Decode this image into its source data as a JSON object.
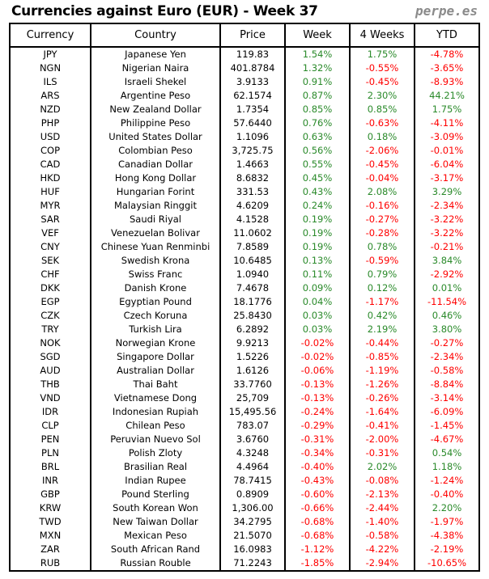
{
  "title": "Currencies against Euro (EUR) - Week 37",
  "brand": "perpe.es",
  "colors": {
    "positive": "#2a8a2a",
    "negative": "#ff0000"
  },
  "chart_data": {
    "type": "table",
    "columns": [
      "Currency",
      "Country",
      "Price",
      "Week",
      "4 Weeks",
      "YTD"
    ],
    "rows": [
      [
        "JPY",
        "Japanese Yen",
        "119.83",
        "1.54%",
        "1.75%",
        "-4.78%"
      ],
      [
        "NGN",
        "Nigerian Naira",
        "401.8784",
        "1.32%",
        "-0.55%",
        "-3.65%"
      ],
      [
        "ILS",
        "Israeli Shekel",
        "3.9133",
        "0.91%",
        "-0.45%",
        "-8.93%"
      ],
      [
        "ARS",
        "Argentine Peso",
        "62.1574",
        "0.87%",
        "2.30%",
        "44.21%"
      ],
      [
        "NZD",
        "New Zealand Dollar",
        "1.7354",
        "0.85%",
        "0.85%",
        "1.75%"
      ],
      [
        "PHP",
        "Philippine Peso",
        "57.6440",
        "0.76%",
        "-0.63%",
        "-4.11%"
      ],
      [
        "USD",
        "United States Dollar",
        "1.1096",
        "0.63%",
        "0.18%",
        "-3.09%"
      ],
      [
        "COP",
        "Colombian Peso",
        "3,725.75",
        "0.56%",
        "-2.06%",
        "-0.01%"
      ],
      [
        "CAD",
        "Canadian Dollar",
        "1.4663",
        "0.55%",
        "-0.45%",
        "-6.04%"
      ],
      [
        "HKD",
        "Hong Kong Dollar",
        "8.6832",
        "0.45%",
        "-0.04%",
        "-3.17%"
      ],
      [
        "HUF",
        "Hungarian Forint",
        "331.53",
        "0.43%",
        "2.08%",
        "3.29%"
      ],
      [
        "MYR",
        "Malaysian Ringgit",
        "4.6209",
        "0.24%",
        "-0.16%",
        "-2.34%"
      ],
      [
        "SAR",
        "Saudi Riyal",
        "4.1528",
        "0.19%",
        "-0.27%",
        "-3.22%"
      ],
      [
        "VEF",
        "Venezuelan Bolivar",
        "11.0602",
        "0.19%",
        "-0.28%",
        "-3.22%"
      ],
      [
        "CNY",
        "Chinese Yuan Renminbi",
        "7.8589",
        "0.19%",
        "0.78%",
        "-0.21%"
      ],
      [
        "SEK",
        "Swedish Krona",
        "10.6485",
        "0.13%",
        "-0.59%",
        "3.84%"
      ],
      [
        "CHF",
        "Swiss Franc",
        "1.0940",
        "0.11%",
        "0.79%",
        "-2.92%"
      ],
      [
        "DKK",
        "Danish Krone",
        "7.4678",
        "0.09%",
        "0.12%",
        "0.01%"
      ],
      [
        "EGP",
        "Egyptian Pound",
        "18.1776",
        "0.04%",
        "-1.17%",
        "-11.54%"
      ],
      [
        "CZK",
        "Czech Koruna",
        "25.8430",
        "0.03%",
        "0.42%",
        "0.46%"
      ],
      [
        "TRY",
        "Turkish Lira",
        "6.2892",
        "0.03%",
        "2.19%",
        "3.80%"
      ],
      [
        "NOK",
        "Norwegian Krone",
        "9.9213",
        "-0.02%",
        "-0.44%",
        "-0.27%"
      ],
      [
        "SGD",
        "Singapore Dollar",
        "1.5226",
        "-0.02%",
        "-0.85%",
        "-2.34%"
      ],
      [
        "AUD",
        "Australian Dollar",
        "1.6126",
        "-0.06%",
        "-1.19%",
        "-0.58%"
      ],
      [
        "THB",
        "Thai Baht",
        "33.7760",
        "-0.13%",
        "-1.26%",
        "-8.84%"
      ],
      [
        "VND",
        "Vietnamese Dong",
        "25,709",
        "-0.13%",
        "-0.26%",
        "-3.14%"
      ],
      [
        "IDR",
        "Indonesian Rupiah",
        "15,495.56",
        "-0.24%",
        "-1.64%",
        "-6.09%"
      ],
      [
        "CLP",
        "Chilean Peso",
        "783.07",
        "-0.29%",
        "-0.41%",
        "-1.45%"
      ],
      [
        "PEN",
        "Peruvian Nuevo Sol",
        "3.6760",
        "-0.31%",
        "-2.00%",
        "-4.67%"
      ],
      [
        "PLN",
        "Polish Zloty",
        "4.3248",
        "-0.34%",
        "-0.31%",
        "0.54%"
      ],
      [
        "BRL",
        "Brasilian Real",
        "4.4964",
        "-0.40%",
        "2.02%",
        "1.18%"
      ],
      [
        "INR",
        "Indian Rupee",
        "78.7415",
        "-0.43%",
        "-0.08%",
        "-1.24%"
      ],
      [
        "GBP",
        "Pound Sterling",
        "0.8909",
        "-0.60%",
        "-2.13%",
        "-0.40%"
      ],
      [
        "KRW",
        "South Korean Won",
        "1,306.00",
        "-0.66%",
        "-2.44%",
        "2.20%"
      ],
      [
        "TWD",
        "New Taiwan Dollar",
        "34.2795",
        "-0.68%",
        "-1.40%",
        "-1.97%"
      ],
      [
        "MXN",
        "Mexican Peso",
        "21.5070",
        "-0.68%",
        "-0.58%",
        "-4.38%"
      ],
      [
        "ZAR",
        "South African Rand",
        "16.0983",
        "-1.12%",
        "-4.22%",
        "-2.19%"
      ],
      [
        "RUB",
        "Russian Rouble",
        "71.2243",
        "-1.85%",
        "-2.94%",
        "-10.65%"
      ]
    ]
  }
}
